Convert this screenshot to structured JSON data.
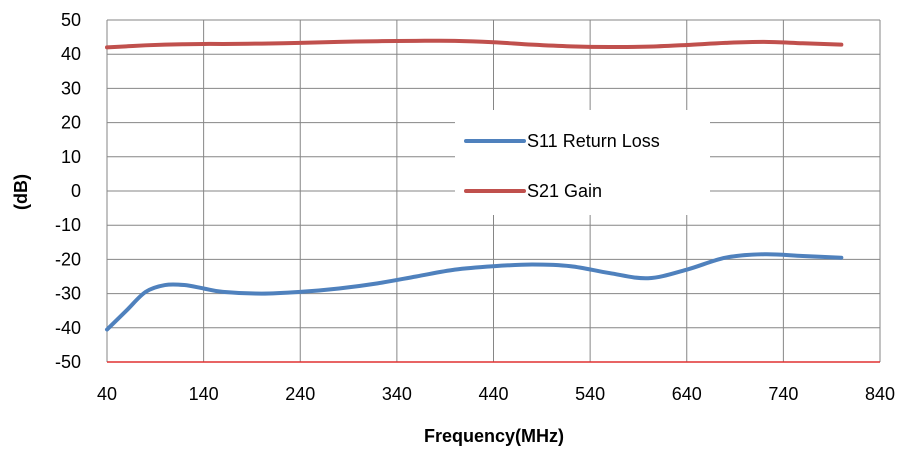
{
  "chart_data": {
    "type": "line",
    "title": "",
    "xlabel": "Frequency(MHz)",
    "ylabel": "(dB)",
    "xlim": [
      40,
      840
    ],
    "ylim": [
      -50,
      50
    ],
    "xticks": [
      40,
      140,
      240,
      340,
      440,
      540,
      640,
      740,
      840
    ],
    "yticks": [
      -50,
      -40,
      -30,
      -20,
      -10,
      0,
      10,
      20,
      30,
      40,
      50
    ],
    "grid": true,
    "legend_position": "center-right",
    "x": [
      40,
      60,
      80,
      100,
      120,
      140,
      160,
      200,
      240,
      280,
      320,
      360,
      400,
      440,
      480,
      520,
      560,
      600,
      640,
      680,
      720,
      760,
      800
    ],
    "series": [
      {
        "name": "S11 Return Loss",
        "color": "#4f81bd",
        "values": [
          -40.5,
          -35,
          -29.5,
          -27.5,
          -27.5,
          -28.5,
          -29.5,
          -30,
          -29.5,
          -28.5,
          -27,
          -25,
          -23,
          -22,
          -21.5,
          -22,
          -24,
          -25.5,
          -23,
          -19.5,
          -18.5,
          -19,
          -19.5
        ]
      },
      {
        "name": "S21 Gain",
        "color": "#c0504d",
        "values": [
          42,
          42.3,
          42.6,
          42.8,
          42.9,
          43,
          43,
          43.1,
          43.3,
          43.6,
          43.8,
          43.9,
          43.9,
          43.5,
          42.8,
          42.3,
          42.1,
          42.2,
          42.7,
          43.3,
          43.6,
          43.2,
          42.8
        ]
      }
    ]
  }
}
